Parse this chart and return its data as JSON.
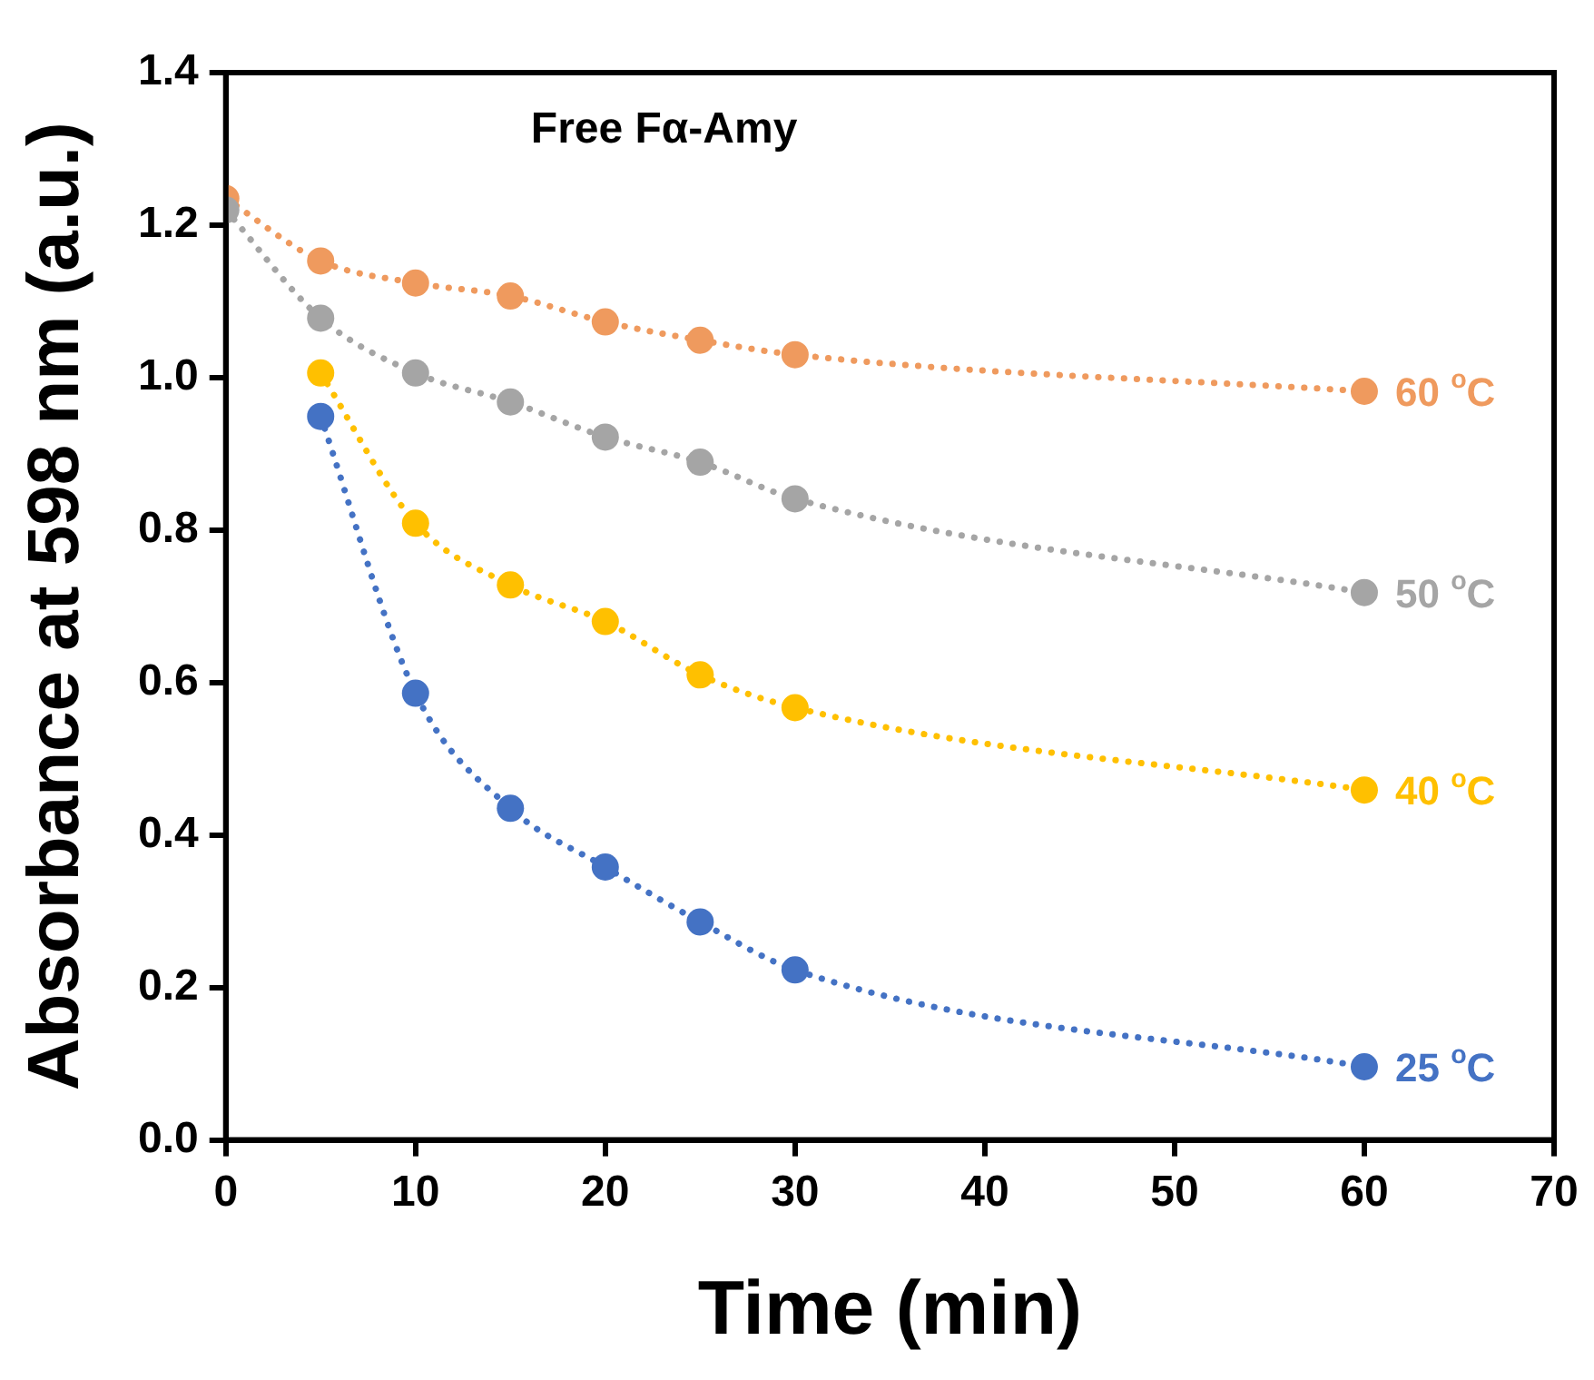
{
  "chart_data": {
    "type": "scatter",
    "title": "Free Fα-Amy",
    "xlabel": "Time (min)",
    "ylabel": "Absorbance at 598 nm (a.u.)",
    "x": [
      0,
      5,
      10,
      15,
      20,
      25,
      30,
      60
    ],
    "series": [
      {
        "name": "25 $^{o}$C",
        "color": "#4472c4",
        "values": [
          null,
          0.949,
          0.586,
          0.435,
          0.358,
          0.286,
          0.223,
          0.096
        ]
      },
      {
        "name": "40 $^{o}$C",
        "color": "#ffc000",
        "values": [
          null,
          1.006,
          0.809,
          0.728,
          0.68,
          0.61,
          0.567,
          0.459
        ]
      },
      {
        "name": "50 $^{o}$C",
        "color": "#a5a5a5",
        "values": [
          1.22,
          1.078,
          1.006,
          0.968,
          0.922,
          0.889,
          0.841,
          0.718
        ]
      },
      {
        "name": "60 $^{o}$C",
        "color": "#ef9a5e",
        "values": [
          1.235,
          1.153,
          1.124,
          1.107,
          1.073,
          1.049,
          1.03,
          0.982
        ]
      }
    ],
    "xlim": [
      0,
      70
    ],
    "xticks": [
      0,
      10,
      20,
      30,
      40,
      50,
      60,
      70
    ],
    "ylim": [
      0,
      1.4
    ],
    "yticks": [
      {
        "value": 0,
        "label": "0.0"
      },
      {
        "value": 0.2,
        "label": "0.2"
      },
      {
        "value": 0.4,
        "label": "0.4"
      },
      {
        "value": 0.6,
        "label": "0.6"
      },
      {
        "value": 0.8,
        "label": "0.8"
      },
      {
        "value": 1.0,
        "label": "1.0"
      },
      {
        "value": 1.2,
        "label": "1.2"
      },
      {
        "value": 1.4,
        "label": "1.4"
      }
    ],
    "grid": false,
    "legend": false,
    "marker": "circle",
    "line_style": "dotted"
  }
}
